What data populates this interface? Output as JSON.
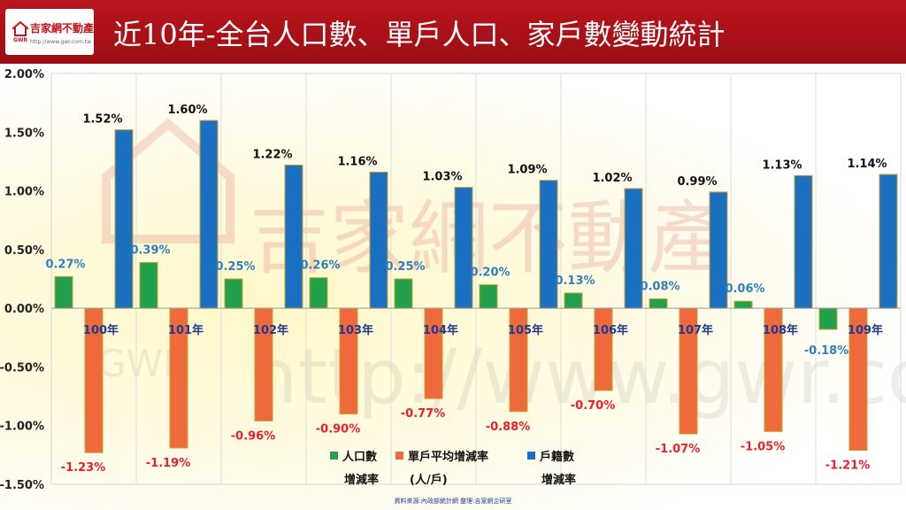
{
  "header": {
    "title": "近10年-全台人口數、單戶人口、家戶數變動統計",
    "logo_text": "吉家網不動產",
    "logo_abbr": "GWR",
    "logo_url": "http://www.gwr.com.tw"
  },
  "watermark": {
    "name": "吉家網不動產",
    "abbr": "GWR",
    "url": "http://www.gwr.com.tw"
  },
  "footer": {
    "source": "資料來源:內政部統計網  整理:吉家網企研室"
  },
  "chart_data": {
    "type": "bar",
    "title": "",
    "xlabel": "",
    "ylabel": "",
    "categories": [
      "100年",
      "101年",
      "102年",
      "103年",
      "104年",
      "105年",
      "106年",
      "107年",
      "108年",
      "109年"
    ],
    "ylim": [
      -1.5,
      2.0
    ],
    "yticks": [
      2.0,
      1.5,
      1.0,
      0.5,
      0.0,
      -0.5,
      -1.0,
      -1.5
    ],
    "ytick_labels": [
      "2.00%",
      "1.50%",
      "1.00%",
      "0.50%",
      "0.00%",
      "-0.50%",
      "-1.00%",
      "-1.50%"
    ],
    "grid": "vertical",
    "legend_position": "bottom-center",
    "series": [
      {
        "name": "人口數增減率",
        "legend_lines": [
          "人口數",
          "增減率"
        ],
        "color": "#22a04b",
        "label_color": "#2f7fc1",
        "values": [
          0.27,
          0.39,
          0.25,
          0.26,
          0.25,
          0.2,
          0.13,
          0.08,
          0.06,
          -0.18
        ],
        "labels": [
          "0.27%",
          "0.39%",
          "0.25%",
          "0.26%",
          "0.25%",
          "0.20%",
          "0.13%",
          "0.08%",
          "0.06%",
          "-0.18%"
        ]
      },
      {
        "name": "單戶平均增減率(人/戶)",
        "legend_lines": [
          "單戶平均增減率",
          "(人/戶)"
        ],
        "color": "#ee6a3c",
        "label_color": "#e8202a",
        "values": [
          -1.23,
          -1.19,
          -0.96,
          -0.9,
          -0.77,
          -0.88,
          -0.7,
          -1.07,
          -1.05,
          -1.21
        ],
        "labels": [
          "-1.23%",
          "-1.19%",
          "-0.96%",
          "-0.90%",
          "-0.77%",
          "-0.88%",
          "-0.70%",
          "-1.07%",
          "-1.05%",
          "-1.21%"
        ]
      },
      {
        "name": "戶籍數增減率",
        "legend_lines": [
          "戶籍數",
          "增減率"
        ],
        "color": "#1a6fc0",
        "label_color": "#111111",
        "values": [
          1.52,
          1.6,
          1.22,
          1.16,
          1.03,
          1.09,
          1.02,
          0.99,
          1.13,
          1.14
        ],
        "labels": [
          "1.52%",
          "1.60%",
          "1.22%",
          "1.16%",
          "1.03%",
          "1.09%",
          "1.02%",
          "0.99%",
          "1.13%",
          "1.14%"
        ]
      }
    ]
  }
}
